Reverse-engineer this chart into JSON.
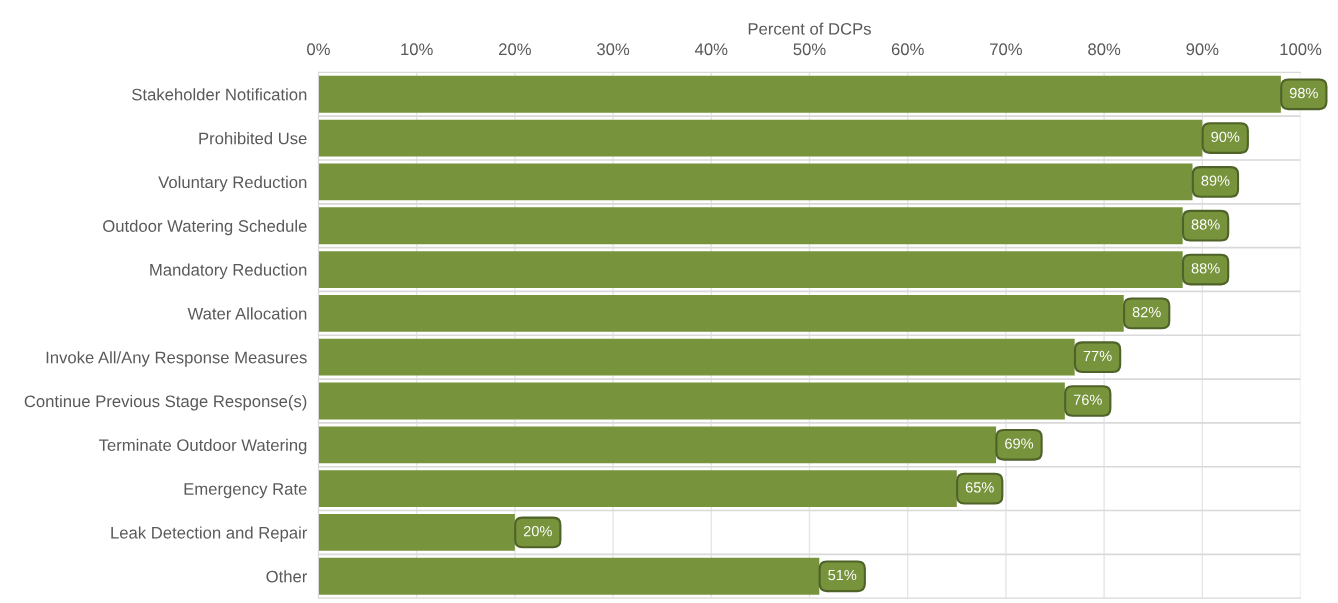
{
  "chart_data": {
    "type": "bar",
    "orientation": "horizontal",
    "xlabel": "Percent of DCPs",
    "categories": [
      "Stakeholder Notification",
      "Prohibited Use",
      "Voluntary Reduction",
      "Outdoor Watering Schedule",
      "Mandatory Reduction",
      "Water Allocation",
      "Invoke All/Any Response Measures",
      "Continue Previous Stage Response(s)",
      "Terminate Outdoor Watering",
      "Emergency Rate",
      "Leak Detection and Repair",
      "Other"
    ],
    "values": [
      98,
      90,
      89,
      88,
      88,
      82,
      77,
      76,
      69,
      65,
      20,
      51
    ],
    "value_labels": [
      "98%",
      "90%",
      "89%",
      "88%",
      "88%",
      "82%",
      "77%",
      "76%",
      "69%",
      "65%",
      "20%",
      "51%"
    ],
    "color": "#77933c",
    "xlim": [
      0,
      100
    ],
    "xticks": [
      {
        "value": 0,
        "label": "0%"
      },
      {
        "value": 10,
        "label": "10%"
      },
      {
        "value": 20,
        "label": "20%"
      },
      {
        "value": 30,
        "label": "30%"
      },
      {
        "value": 40,
        "label": "40%"
      },
      {
        "value": 50,
        "label": "50%"
      },
      {
        "value": 60,
        "label": "60%"
      },
      {
        "value": 70,
        "label": "70%"
      },
      {
        "value": 80,
        "label": "80%"
      },
      {
        "value": 90,
        "label": "90%"
      },
      {
        "value": 100,
        "label": "100%"
      }
    ],
    "grid": true
  }
}
